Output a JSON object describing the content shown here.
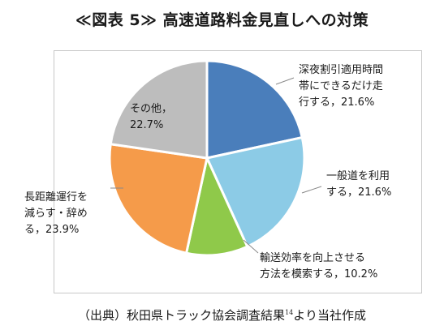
{
  "figure": {
    "title": "≪図表 5≫ 高速道路料金見直しへの対策",
    "source_main": "（出典）秋田県トラック協会調査結果",
    "source_footnote": "14",
    "source_tail": "より当社作成"
  },
  "chart_data": {
    "type": "pie",
    "title": "",
    "slices": [
      {
        "label_lines": [
          "深夜割引適用時間",
          "帯にできるだけ走",
          "行する，21.6%"
        ],
        "value": 21.6,
        "color": "#4a7ebb"
      },
      {
        "label_lines": [
          "一般道を利用",
          "する，21.6%"
        ],
        "value": 21.6,
        "color": "#8ccbe6"
      },
      {
        "label_lines": [
          "輸送効率を向上させる",
          "方法を模索する，10.2%"
        ],
        "value": 10.2,
        "color": "#8fc94a"
      },
      {
        "label_lines": [
          "長距離運行を",
          "減らす・辞め",
          "る，23.9%"
        ],
        "value": 23.9,
        "color": "#f59b4a"
      },
      {
        "label_lines": [
          "その他，",
          "22.7%"
        ],
        "value": 22.7,
        "color": "#bdbdbd"
      }
    ]
  }
}
